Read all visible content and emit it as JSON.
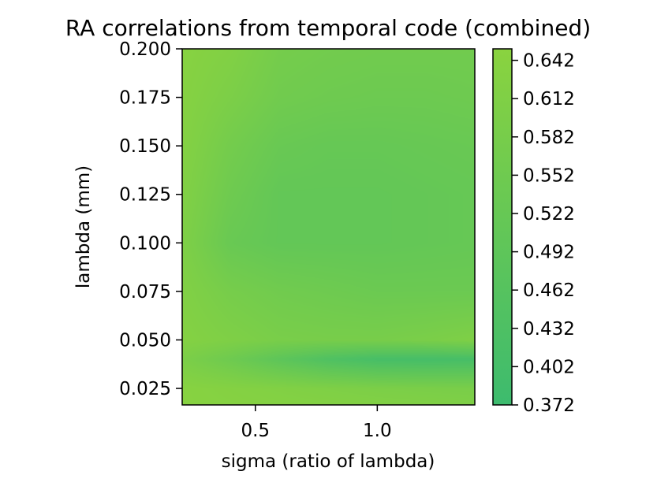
{
  "chart_data": {
    "type": "heatmap",
    "title": "RA correlations from temporal code (combined)",
    "xlabel": "sigma (ratio of lambda)",
    "ylabel": "lambda (mm)",
    "xlim": [
      0.2,
      1.4
    ],
    "ylim": [
      0.0165,
      0.2
    ],
    "x_ticks": [
      0.5,
      1.0
    ],
    "x_tick_labels": [
      "0.5",
      "1.0"
    ],
    "y_ticks": [
      0.025,
      0.05,
      0.075,
      0.1,
      0.125,
      0.15,
      0.175,
      0.2
    ],
    "y_tick_labels": [
      "0.025",
      "0.050",
      "0.075",
      "0.100",
      "0.125",
      "0.150",
      "0.175",
      "0.200"
    ],
    "colorbar": {
      "ticks": [
        0.372,
        0.402,
        0.432,
        0.462,
        0.492,
        0.522,
        0.552,
        0.582,
        0.612,
        0.642
      ],
      "tick_labels": [
        "0.372",
        "0.402",
        "0.432",
        "0.462",
        "0.492",
        "0.522",
        "0.552",
        "0.582",
        "0.612",
        "0.642"
      ],
      "range": [
        0.372,
        0.651
      ],
      "color_low": "#3dbb6e",
      "color_high": "#8ad33f"
    },
    "x": [
      0.2,
      0.4,
      0.6,
      0.8,
      1.0,
      1.2,
      1.4
    ],
    "y": [
      0.0165,
      0.025,
      0.04,
      0.05,
      0.075,
      0.1,
      0.125,
      0.15,
      0.175,
      0.2
    ],
    "z": [
      [
        0.64,
        0.635,
        0.63,
        0.625,
        0.62,
        0.615,
        0.61
      ],
      [
        0.64,
        0.63,
        0.62,
        0.61,
        0.6,
        0.595,
        0.59
      ],
      [
        0.6,
        0.55,
        0.49,
        0.44,
        0.41,
        0.405,
        0.41
      ],
      [
        0.63,
        0.61,
        0.59,
        0.585,
        0.585,
        0.595,
        0.61
      ],
      [
        0.62,
        0.58,
        0.56,
        0.55,
        0.54,
        0.54,
        0.54
      ],
      [
        0.61,
        0.53,
        0.51,
        0.51,
        0.51,
        0.515,
        0.52
      ],
      [
        0.62,
        0.55,
        0.51,
        0.51,
        0.51,
        0.515,
        0.52
      ],
      [
        0.63,
        0.57,
        0.53,
        0.52,
        0.52,
        0.525,
        0.53
      ],
      [
        0.635,
        0.6,
        0.56,
        0.55,
        0.545,
        0.545,
        0.55
      ],
      [
        0.64,
        0.62,
        0.575,
        0.565,
        0.56,
        0.56,
        0.56
      ]
    ]
  }
}
